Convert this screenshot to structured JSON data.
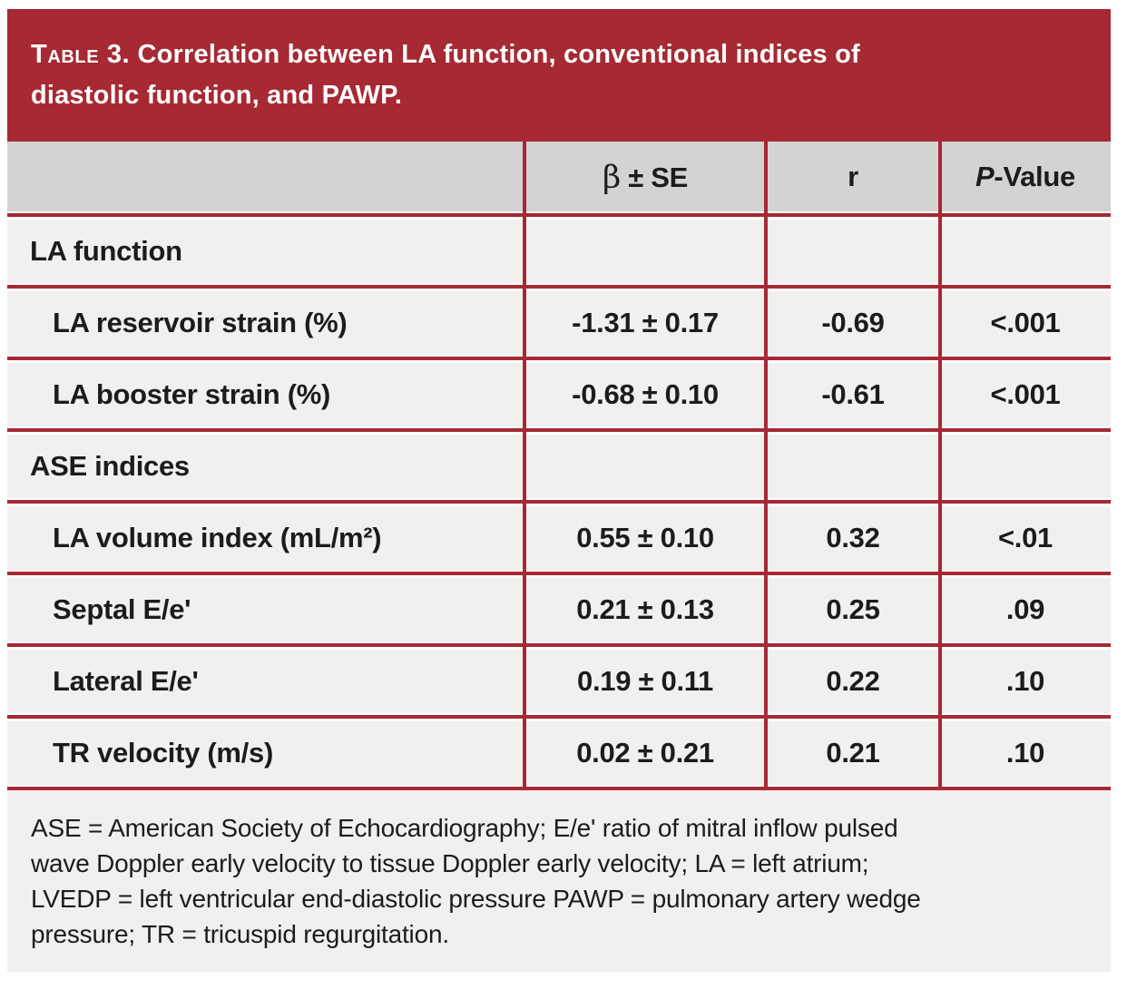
{
  "title": {
    "prefix": "Table 3.",
    "line1": "Correlation between LA function, conventional indices of",
    "line2": "diastolic function, and PAWP."
  },
  "table": {
    "columns": {
      "label": "",
      "beta": {
        "symbol": "β",
        "rest": " ± SE"
      },
      "r": "r",
      "p": {
        "italic": "P",
        "rest": "-Value"
      }
    },
    "rows": [
      {
        "type": "section",
        "label": "LA function",
        "beta_se": "",
        "r": "",
        "p": ""
      },
      {
        "type": "item",
        "label": "LA reservoir strain (%)",
        "beta_se": "-1.31 ± 0.17",
        "r": "-0.69",
        "p": "<.001"
      },
      {
        "type": "item",
        "label": "LA booster strain (%)",
        "beta_se": "-0.68 ± 0.10",
        "r": "-0.61",
        "p": "<.001"
      },
      {
        "type": "section",
        "label": "ASE indices",
        "beta_se": "",
        "r": "",
        "p": ""
      },
      {
        "type": "item",
        "label": "LA volume index (mL/m²)",
        "beta_se": "0.55 ± 0.10",
        "r": "0.32",
        "p": "<.01"
      },
      {
        "type": "item",
        "label": "Septal E/e'",
        "beta_se": "0.21 ± 0.13",
        "r": "0.25",
        "p": ".09"
      },
      {
        "type": "item",
        "label": "Lateral E/e'",
        "beta_se": "0.19 ± 0.11",
        "r": "0.22",
        "p": ".10"
      },
      {
        "type": "item",
        "label": "TR velocity (m/s)",
        "beta_se": "0.02 ± 0.21",
        "r": "0.21",
        "p": ".10"
      }
    ]
  },
  "footnote": {
    "lines": [
      "ASE = American Society of Echocardiography; E/e' ratio of mitral inflow pulsed",
      "wave Doppler early velocity to tissue Doppler early velocity; LA = left atrium;",
      "LVEDP = left ventricular end-diastolic pressure PAWP = pulmonary artery wedge",
      "pressure; TR = tricuspid regurgitation."
    ]
  },
  "colors": {
    "accent_red": "#a62933",
    "header_gray": "#d4d2d2",
    "row_bg": "#f2f0ef",
    "title_text": "#ffffff",
    "ink": "#1d1b1b"
  }
}
